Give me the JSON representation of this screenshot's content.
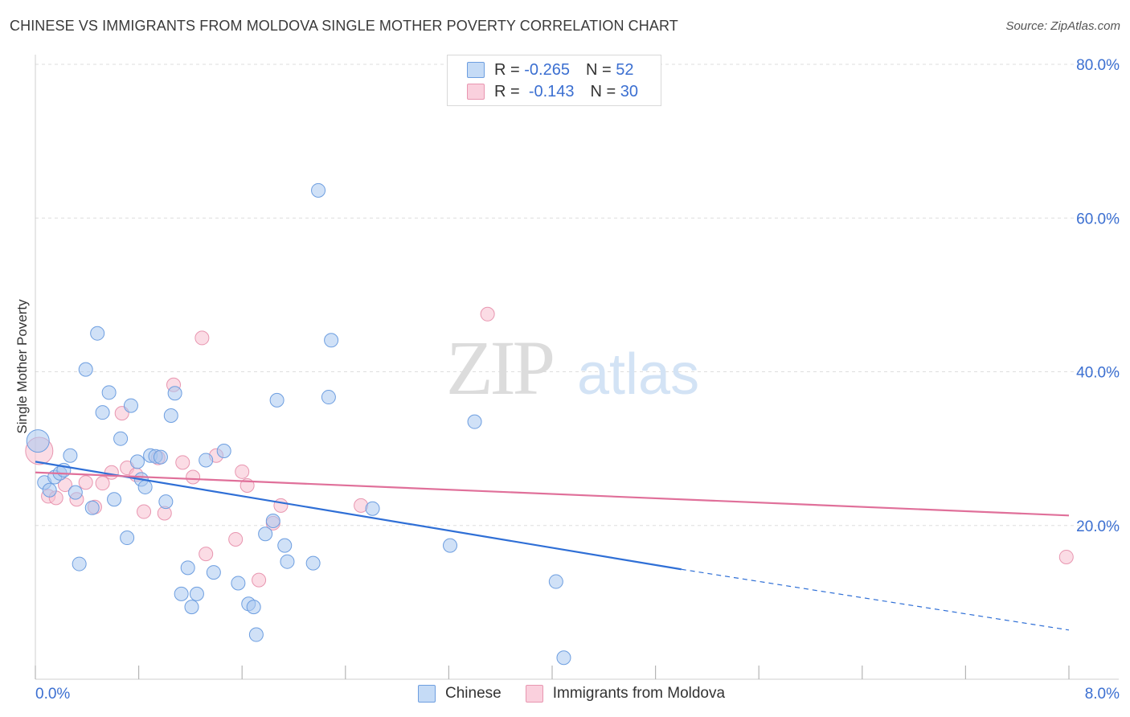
{
  "header": {
    "title": "CHINESE VS IMMIGRANTS FROM MOLDOVA SINGLE MOTHER POVERTY CORRELATION CHART",
    "source": "Source: ZipAtlas.com"
  },
  "watermark": {
    "zip": "ZIP",
    "atlas": "atlas"
  },
  "stats_legend": {
    "rows": [
      {
        "r_label": "R =",
        "r_value": "-0.265",
        "n_label": "N =",
        "n_value": "52",
        "color": "#a9c9f0"
      },
      {
        "r_label": "R =",
        "r_value": "-0.143",
        "n_label": "N =",
        "n_value": "30",
        "color": "#f5b8cb"
      }
    ]
  },
  "bottom_legend": [
    {
      "label": "Chinese",
      "color": "#a9c9f0"
    },
    {
      "label": "Immigrants from Moldova",
      "color": "#f5b8cb"
    }
  ],
  "colors": {
    "chinese_fill": "#a9c9f0",
    "chinese_stroke": "#6d9ee0",
    "chinese_line": "#2f6fd6",
    "moldova_fill": "#f7bfd0",
    "moldova_stroke": "#e896b0",
    "moldova_line": "#e0709a",
    "axis_text": "#3b6fd1",
    "grid": "#dedede"
  },
  "chart_data": {
    "type": "scatter",
    "title": "CHINESE VS IMMIGRANTS FROM MOLDOVA SINGLE MOTHER POVERTY CORRELATION CHART",
    "xlabel": "",
    "ylabel": "Single Mother Poverty",
    "xlim": [
      0,
      8
    ],
    "ylim": [
      0,
      80
    ],
    "x_tick_labels": [
      "0.0%",
      "8.0%"
    ],
    "y_ticks": [
      20,
      40,
      60,
      80
    ],
    "y_tick_labels": [
      "20.0%",
      "40.0%",
      "60.0%",
      "80.0%"
    ],
    "grid": true,
    "series": [
      {
        "name": "Chinese",
        "r": -0.265,
        "n": 52,
        "trend": {
          "x0": 0,
          "y0": 28.3,
          "x1": 5.0,
          "y1": 14.3,
          "dash_to_x": 8.0,
          "dash_to_y": 6.4
        },
        "points": [
          [
            0.02,
            31.0
          ],
          [
            0.07,
            25.6
          ],
          [
            0.11,
            24.6
          ],
          [
            0.15,
            26.3
          ],
          [
            0.19,
            26.8
          ],
          [
            0.22,
            27.2
          ],
          [
            0.27,
            29.1
          ],
          [
            0.31,
            24.3
          ],
          [
            0.34,
            15.0
          ],
          [
            0.39,
            40.3
          ],
          [
            0.44,
            22.3
          ],
          [
            0.48,
            45.0
          ],
          [
            0.52,
            34.7
          ],
          [
            0.57,
            37.3
          ],
          [
            0.61,
            23.4
          ],
          [
            0.66,
            31.3
          ],
          [
            0.71,
            18.4
          ],
          [
            0.74,
            35.6
          ],
          [
            0.79,
            28.3
          ],
          [
            0.82,
            26.0
          ],
          [
            0.85,
            25.0
          ],
          [
            0.89,
            29.1
          ],
          [
            0.93,
            29.0
          ],
          [
            0.97,
            28.9
          ],
          [
            1.01,
            23.1
          ],
          [
            1.05,
            34.3
          ],
          [
            1.08,
            37.2
          ],
          [
            1.13,
            11.1
          ],
          [
            1.18,
            14.5
          ],
          [
            1.21,
            9.4
          ],
          [
            1.25,
            11.1
          ],
          [
            1.32,
            28.5
          ],
          [
            1.38,
            13.9
          ],
          [
            1.46,
            29.7
          ],
          [
            1.57,
            12.5
          ],
          [
            1.65,
            9.8
          ],
          [
            1.69,
            9.4
          ],
          [
            1.71,
            5.8
          ],
          [
            1.78,
            18.9
          ],
          [
            1.84,
            20.6
          ],
          [
            1.87,
            36.3
          ],
          [
            1.93,
            17.4
          ],
          [
            1.95,
            15.3
          ],
          [
            2.15,
            15.1
          ],
          [
            2.19,
            63.6
          ],
          [
            2.27,
            36.7
          ],
          [
            2.29,
            44.1
          ],
          [
            2.61,
            22.2
          ],
          [
            3.21,
            17.4
          ],
          [
            3.4,
            33.5
          ],
          [
            4.03,
            12.7
          ],
          [
            4.09,
            2.8
          ]
        ]
      },
      {
        "name": "Immigrants from Moldova",
        "r": -0.143,
        "n": 30,
        "trend": {
          "x0": 0,
          "y0": 26.9,
          "x1": 8.0,
          "y1": 21.3
        },
        "points": [
          [
            0.03,
            29.7
          ],
          [
            0.1,
            23.8
          ],
          [
            0.16,
            23.6
          ],
          [
            0.23,
            25.3
          ],
          [
            0.32,
            23.4
          ],
          [
            0.39,
            25.6
          ],
          [
            0.46,
            22.4
          ],
          [
            0.52,
            25.5
          ],
          [
            0.59,
            26.9
          ],
          [
            0.67,
            34.6
          ],
          [
            0.71,
            27.5
          ],
          [
            0.78,
            26.6
          ],
          [
            0.84,
            21.8
          ],
          [
            0.95,
            28.8
          ],
          [
            1.0,
            21.6
          ],
          [
            1.07,
            38.3
          ],
          [
            1.14,
            28.2
          ],
          [
            1.22,
            26.3
          ],
          [
            1.29,
            44.4
          ],
          [
            1.32,
            16.3
          ],
          [
            1.4,
            29.1
          ],
          [
            1.55,
            18.2
          ],
          [
            1.6,
            27.0
          ],
          [
            1.64,
            25.2
          ],
          [
            1.73,
            12.9
          ],
          [
            1.84,
            20.3
          ],
          [
            1.9,
            22.6
          ],
          [
            2.52,
            22.6
          ],
          [
            3.5,
            47.5
          ],
          [
            7.98,
            15.9
          ]
        ]
      }
    ]
  }
}
